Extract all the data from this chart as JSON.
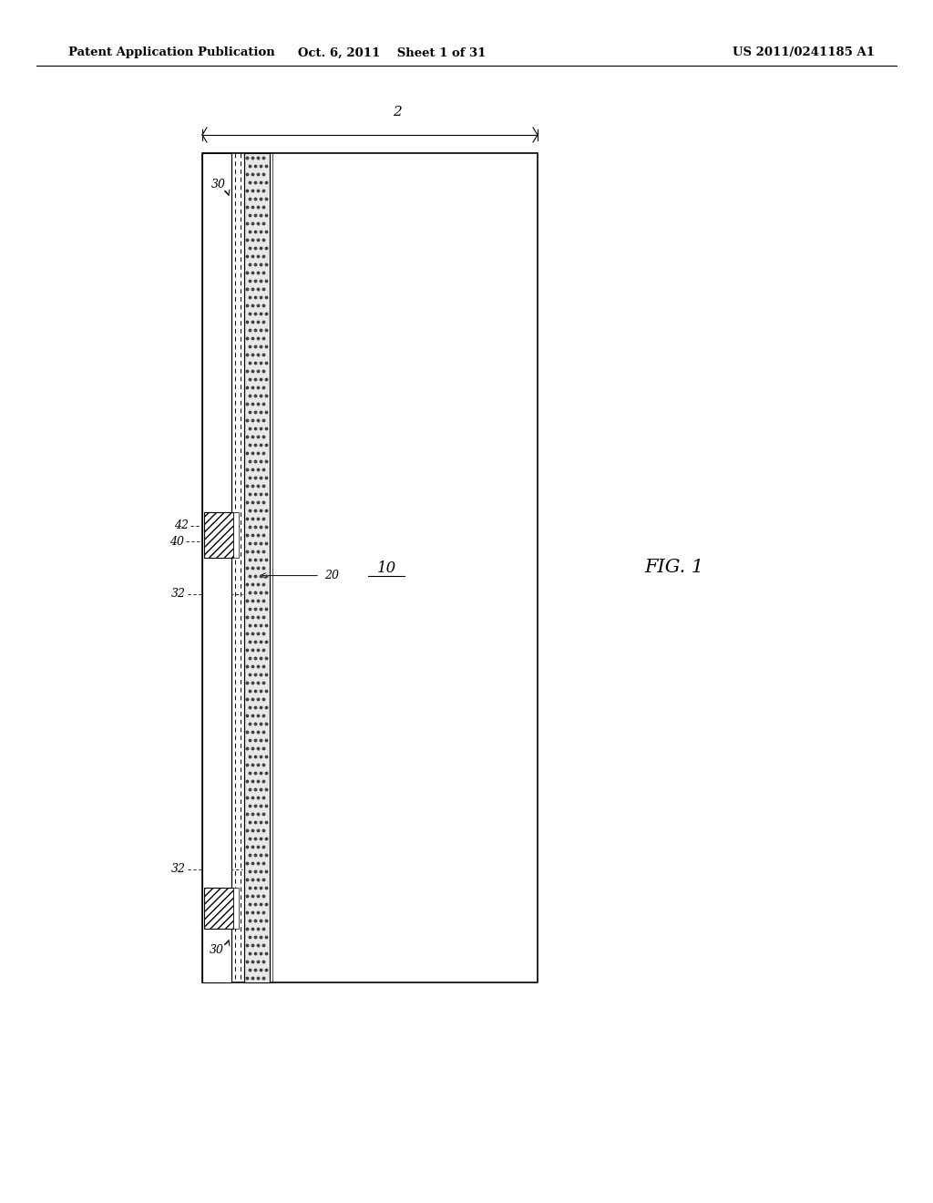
{
  "bg_color": "#ffffff",
  "header_left": "Patent Application Publication",
  "header_mid": "Oct. 6, 2011    Sheet 1 of 31",
  "header_right": "US 2011/0241185 A1",
  "fig_label": "FIG. 1",
  "label_2": "2",
  "label_10": "10",
  "label_20": "20",
  "label_30a": "30",
  "label_30b": "30",
  "label_32a": "32",
  "label_32b": "32",
  "label_40": "40",
  "label_42": "42"
}
